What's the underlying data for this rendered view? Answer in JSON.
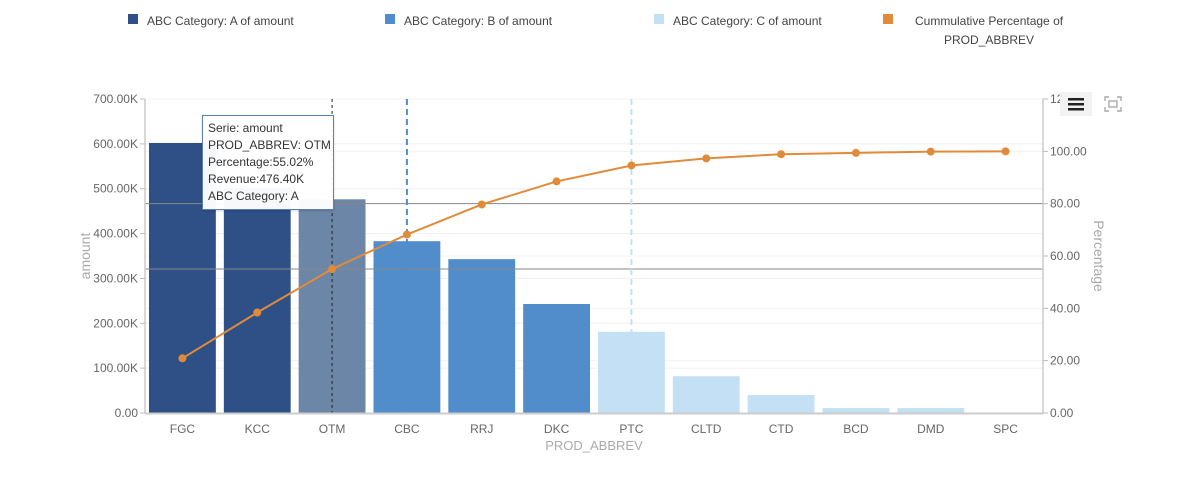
{
  "legend": [
    {
      "label": "ABC Category: A of amount",
      "color": "#2e5087"
    },
    {
      "label": "ABC Category: B of amount",
      "color": "#518ccb"
    },
    {
      "label": "ABC Category: C of amount",
      "color": "#c4e0f5"
    },
    {
      "label": "Cummulative Percentage of PROD_ABBREV",
      "line1": "Cummulative Percentage of",
      "line2": "PROD_ABBREV",
      "color": "#e08b3a"
    }
  ],
  "tooltip": {
    "serie": "Serie: amount",
    "prod": "PROD_ABBREV: OTM",
    "percentage": "Percentage:55.02%",
    "revenue": "Revenue:476.40K",
    "category": "ABC Category: A"
  },
  "toolbar": {
    "menu_icon": "hamburger-menu-icon",
    "fullscreen_icon": "fullscreen-icon"
  },
  "chart_data": {
    "type": "bar",
    "title": "",
    "xlabel": "PROD_ABBREV",
    "ylabel": "amount",
    "y2label": "Percentage",
    "ylim": [
      0,
      700000
    ],
    "y2lim": [
      0,
      120
    ],
    "yticks": [
      "0.00",
      "100.00K",
      "200.00K",
      "300.00K",
      "400.00K",
      "500.00K",
      "600.00K",
      "700.00K"
    ],
    "y2ticks": [
      "0.00",
      "20.00",
      "40.00",
      "60.00",
      "80.00",
      "100.00",
      "120.00"
    ],
    "categories": [
      "FGC",
      "KCC",
      "OTM",
      "CBC",
      "RRJ",
      "DKC",
      "PTC",
      "CLTD",
      "CTD",
      "BCD",
      "DMD",
      "SPC"
    ],
    "series": [
      {
        "name": "ABC Category: A of amount",
        "type": "bar",
        "values": [
          602000,
          502000,
          476400,
          null,
          null,
          null,
          null,
          null,
          null,
          null,
          null,
          null
        ]
      },
      {
        "name": "ABC Category: B of amount",
        "type": "bar",
        "values": [
          null,
          null,
          null,
          383000,
          343000,
          243000,
          null,
          null,
          null,
          null,
          null,
          null
        ]
      },
      {
        "name": "ABC Category: C of amount",
        "type": "bar",
        "values": [
          null,
          null,
          null,
          null,
          null,
          null,
          181000,
          82000,
          40000,
          11000,
          11000,
          1000
        ]
      },
      {
        "name": "Cummulative Percentage of PROD_ABBREV",
        "type": "line",
        "axis": "right",
        "values": [
          20.9,
          38.4,
          55.02,
          68.2,
          79.7,
          88.5,
          94.6,
          97.3,
          98.9,
          99.4,
          99.9,
          100.0
        ]
      }
    ],
    "reference_lines": [
      {
        "axis": "right",
        "value": 80,
        "style": "solid"
      },
      {
        "axis": "right",
        "value": 55.02,
        "style": "solid"
      }
    ],
    "markers": [
      {
        "category": "OTM",
        "style": "dashed",
        "color": "#222222"
      },
      {
        "category": "CBC",
        "style": "dashed",
        "color": "#518ccb"
      },
      {
        "category": "PTC",
        "style": "dashed",
        "color": "#c4e0f5"
      }
    ],
    "highlighted": "OTM",
    "grid": true,
    "legend_position": "top"
  }
}
